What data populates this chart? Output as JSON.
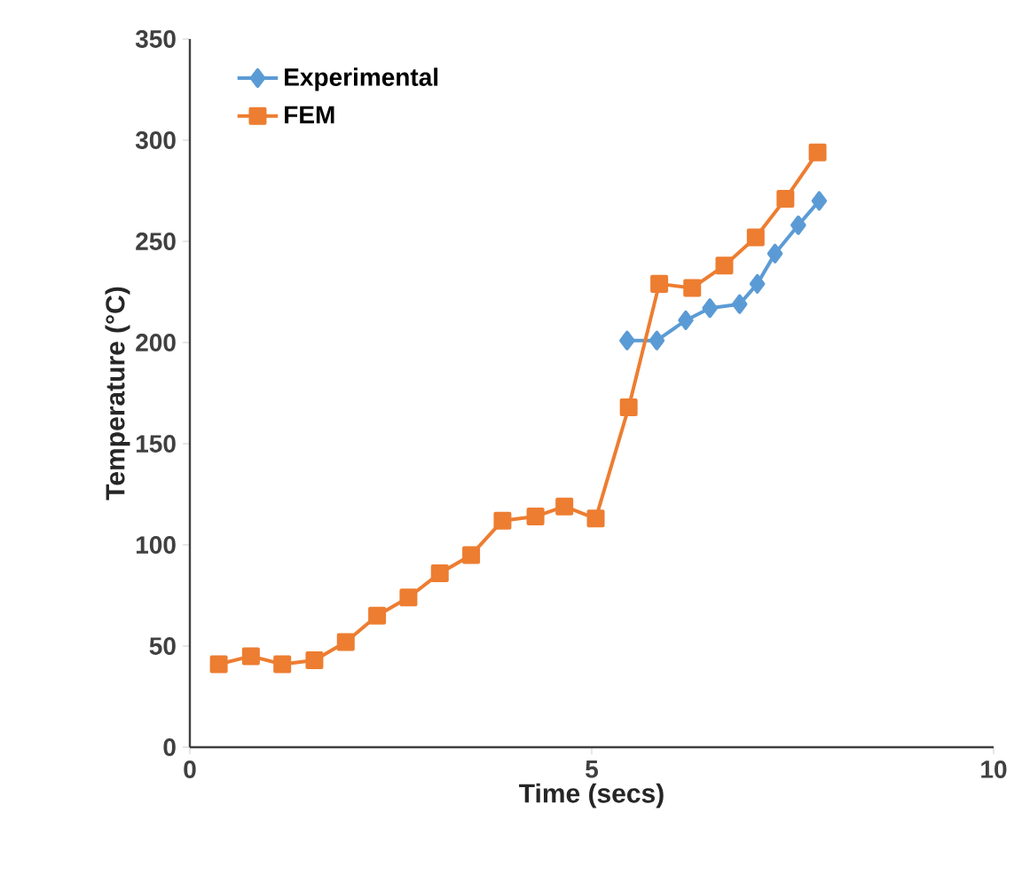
{
  "chart_data": {
    "type": "line",
    "xlabel": "Time (secs)",
    "ylabel": "Temperature  (°C)",
    "xlim": [
      0,
      10
    ],
    "xticks": [
      0,
      5,
      10
    ],
    "ylim": [
      0,
      350
    ],
    "yticks": [
      0,
      50,
      100,
      150,
      200,
      250,
      300,
      350
    ],
    "legend": "top left",
    "grid": false,
    "series": [
      {
        "name": "Experimental",
        "color": "#5b9bd5",
        "marker": "diamond",
        "x": [
          5.44,
          5.81,
          6.17,
          6.47,
          6.84,
          7.06,
          7.28,
          7.57,
          7.83
        ],
        "values": [
          201,
          201,
          211,
          217,
          219,
          229,
          244,
          258,
          270
        ]
      },
      {
        "name": "FEM",
        "color": "#ed7d31",
        "marker": "square",
        "x": [
          0.36,
          0.76,
          1.15,
          1.55,
          1.94,
          2.33,
          2.72,
          3.11,
          3.5,
          3.89,
          4.3,
          4.66,
          5.05,
          5.46,
          5.84,
          6.25,
          6.65,
          7.04,
          7.41,
          7.81
        ],
        "values": [
          41,
          45,
          41,
          43,
          52,
          65,
          74,
          86,
          95,
          112,
          114,
          119,
          113,
          168,
          229,
          227,
          238,
          252,
          271,
          294
        ]
      }
    ]
  }
}
